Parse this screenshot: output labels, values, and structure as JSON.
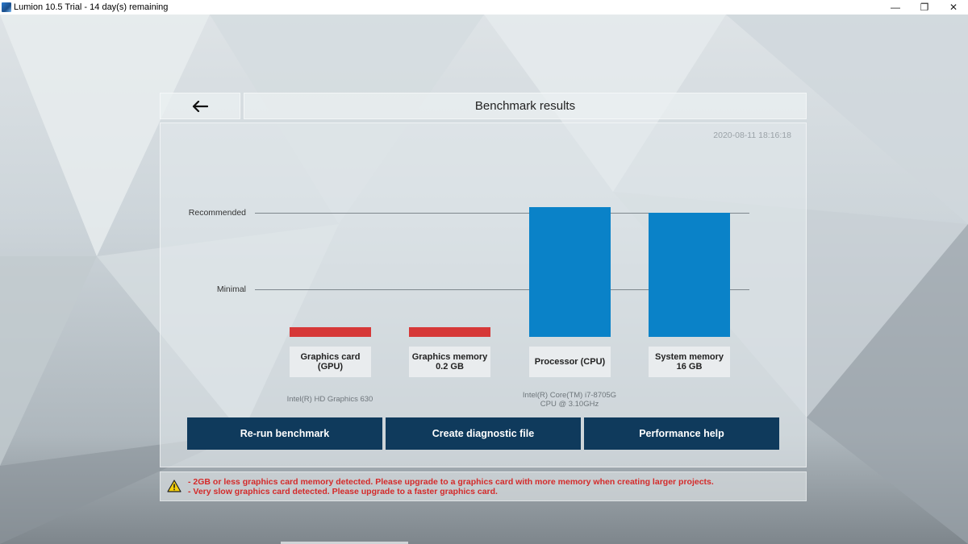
{
  "window": {
    "title": "Lumion 10.5 Trial - 14 day(s) remaining",
    "minimize": "—",
    "restore": "❐",
    "close": "✕"
  },
  "header": {
    "back_icon": "left-arrow-icon",
    "title": "Benchmark results"
  },
  "timestamp": "2020-08-11 18:16:18",
  "levels": {
    "recommended": "Recommended",
    "minimal": "Minimal"
  },
  "categories": [
    {
      "title": "Graphics card",
      "sub": "(GPU)",
      "info_line1": "Intel(R) HD Graphics 630",
      "info_line2": "",
      "status": "fail"
    },
    {
      "title": "Graphics memory",
      "sub": "0.2 GB",
      "info_line1": "",
      "info_line2": "",
      "status": "fail"
    },
    {
      "title": "Processor (CPU)",
      "sub": "",
      "info_line1": "Intel(R) Core(TM) i7-8705G",
      "info_line2": "CPU @ 3.10GHz",
      "status": "pass"
    },
    {
      "title": "System memory",
      "sub": "16 GB",
      "info_line1": "",
      "info_line2": "",
      "status": "pass"
    }
  ],
  "buttons": {
    "rerun": "Re-run benchmark",
    "diagnostic": "Create diagnostic file",
    "help": "Performance help"
  },
  "warnings": {
    "icon": "warning-triangle-icon",
    "line1": "- 2GB or less graphics card memory detected. Please upgrade to a graphics card with more memory when creating larger projects.",
    "line2": "- Very slow graphics card detected. Please upgrade to a faster graphics card."
  },
  "colors": {
    "fail_bar": "#d63838",
    "pass_bar": "#0a82c8",
    "button_bg": "#0f3a5c",
    "warning_text": "#d42a2a"
  }
}
